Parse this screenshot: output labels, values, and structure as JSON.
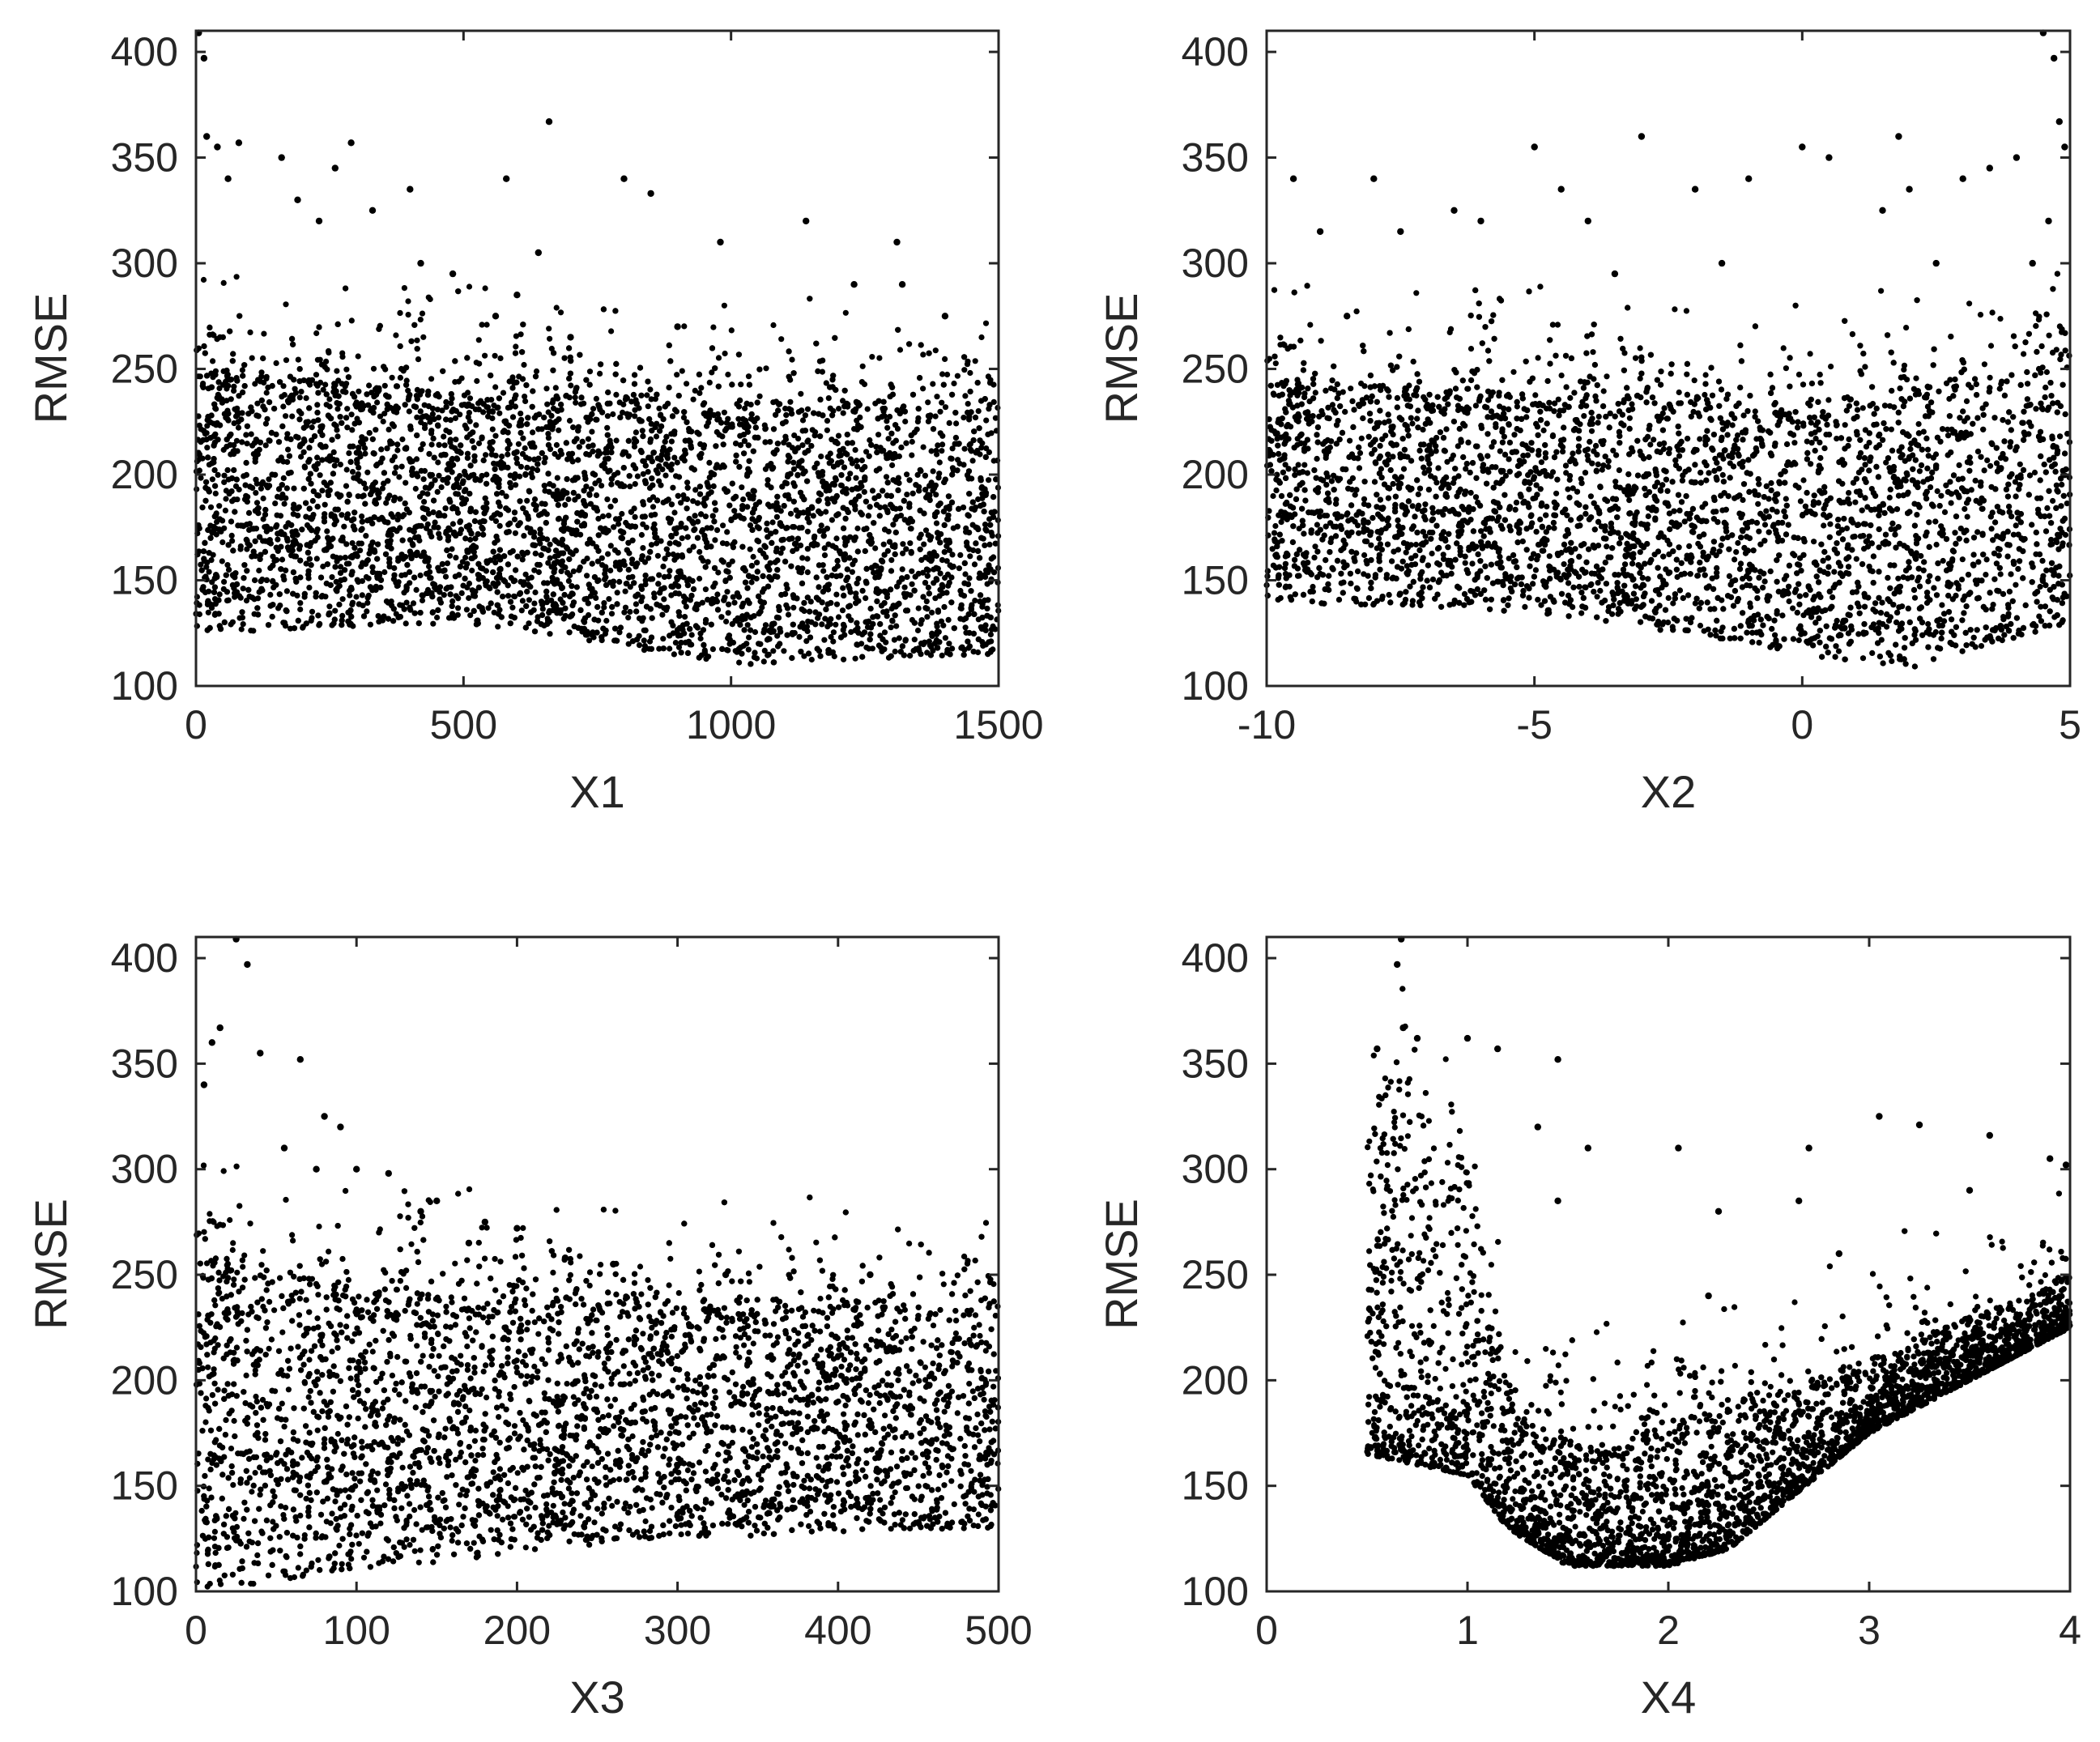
{
  "chart_data": [
    {
      "type": "scatter",
      "title": "",
      "xlabel": "X1",
      "ylabel": "RMSE",
      "xlim": [
        0,
        1500
      ],
      "ylim": [
        100,
        410
      ],
      "xticks": [
        0,
        500,
        1000,
        1500
      ],
      "yticks": [
        100,
        150,
        200,
        250,
        300,
        350,
        400
      ],
      "xtick_labels": [
        "0",
        "500",
        "1000",
        "1500"
      ],
      "ytick_labels": [
        "100",
        "150",
        "200",
        "250",
        "300",
        "350",
        "400"
      ],
      "grid": false,
      "points_approx": 6000,
      "band": {
        "x": [
          0,
          500,
          1000,
          1500
        ],
        "lower": [
          125,
          130,
          110,
          115
        ],
        "upper": [
          250,
          240,
          235,
          235
        ]
      },
      "outliers": [
        [
          5,
          410
        ],
        [
          15,
          397
        ],
        [
          20,
          360
        ],
        [
          40,
          355
        ],
        [
          60,
          340
        ],
        [
          80,
          357
        ],
        [
          160,
          350
        ],
        [
          190,
          330
        ],
        [
          230,
          320
        ],
        [
          260,
          345
        ],
        [
          290,
          357
        ],
        [
          330,
          325
        ],
        [
          400,
          335
        ],
        [
          420,
          300
        ],
        [
          480,
          295
        ],
        [
          560,
          275
        ],
        [
          580,
          340
        ],
        [
          600,
          285
        ],
        [
          640,
          305
        ],
        [
          660,
          367
        ],
        [
          800,
          340
        ],
        [
          850,
          333
        ],
        [
          980,
          310
        ],
        [
          1140,
          320
        ],
        [
          1310,
          310
        ],
        [
          1320,
          290
        ],
        [
          1400,
          275
        ],
        [
          1230,
          290
        ],
        [
          700,
          265
        ],
        [
          900,
          270
        ]
      ]
    },
    {
      "type": "scatter",
      "title": "",
      "xlabel": "X2",
      "ylabel": "RMSE",
      "xlim": [
        -10,
        5
      ],
      "ylim": [
        100,
        410
      ],
      "xticks": [
        -10,
        -5,
        0,
        5
      ],
      "yticks": [
        100,
        150,
        200,
        250,
        300,
        350,
        400
      ],
      "xtick_labels": [
        "-10",
        "-5",
        "0",
        "5"
      ],
      "ytick_labels": [
        "100",
        "150",
        "200",
        "250",
        "300",
        "350",
        "400"
      ],
      "grid": false,
      "points_approx": 6000,
      "band": {
        "x": [
          -10,
          -5,
          0,
          2,
          5
        ],
        "lower": [
          140,
          135,
          115,
          108,
          130
        ],
        "upper": [
          245,
          240,
          235,
          240,
          260
        ]
      },
      "outliers": [
        [
          -9.5,
          340
        ],
        [
          -9,
          315
        ],
        [
          -8,
          340
        ],
        [
          -7.5,
          315
        ],
        [
          -6.5,
          325
        ],
        [
          -6,
          320
        ],
        [
          -5,
          355
        ],
        [
          -4.5,
          335
        ],
        [
          -4,
          320
        ],
        [
          -3,
          360
        ],
        [
          -2,
          335
        ],
        [
          -1.5,
          300
        ],
        [
          -1,
          340
        ],
        [
          0,
          355
        ],
        [
          0.5,
          350
        ],
        [
          1.5,
          325
        ],
        [
          1.8,
          360
        ],
        [
          2,
          335
        ],
        [
          3,
          340
        ],
        [
          3.5,
          345
        ],
        [
          4,
          350
        ],
        [
          4.5,
          410
        ],
        [
          4.7,
          397
        ],
        [
          4.8,
          367
        ],
        [
          4.9,
          355
        ],
        [
          4.6,
          320
        ],
        [
          4.3,
          300
        ],
        [
          2.5,
          300
        ],
        [
          -8.5,
          275
        ],
        [
          -3.5,
          295
        ]
      ]
    },
    {
      "type": "scatter",
      "title": "",
      "xlabel": "X3",
      "ylabel": "RMSE",
      "xlim": [
        0,
        500
      ],
      "ylim": [
        100,
        410
      ],
      "xticks": [
        0,
        100,
        200,
        300,
        400,
        500
      ],
      "yticks": [
        100,
        150,
        200,
        250,
        300,
        350,
        400
      ],
      "xtick_labels": [
        "0",
        "100",
        "200",
        "300",
        "400",
        "500"
      ],
      "ytick_labels": [
        "100",
        "150",
        "200",
        "250",
        "300",
        "350",
        "400"
      ],
      "grid": false,
      "points_approx": 6000,
      "band": {
        "x": [
          0,
          100,
          200,
          300,
          400,
          500
        ],
        "lower": [
          100,
          110,
          118,
          125,
          128,
          130
        ],
        "upper": [
          260,
          245,
          240,
          240,
          238,
          238
        ]
      },
      "outliers": [
        [
          25,
          410
        ],
        [
          32,
          397
        ],
        [
          15,
          367
        ],
        [
          10,
          360
        ],
        [
          40,
          355
        ],
        [
          65,
          352
        ],
        [
          80,
          325
        ],
        [
          90,
          320
        ],
        [
          100,
          300
        ],
        [
          120,
          298
        ],
        [
          150,
          285
        ],
        [
          180,
          275
        ],
        [
          200,
          272
        ],
        [
          230,
          258
        ],
        [
          260,
          255
        ],
        [
          330,
          250
        ],
        [
          420,
          250
        ],
        [
          5,
          340
        ],
        [
          55,
          310
        ],
        [
          75,
          300
        ],
        [
          140,
          280
        ],
        [
          170,
          265
        ]
      ]
    },
    {
      "type": "scatter",
      "title": "",
      "xlabel": "X4",
      "ylabel": "RMSE",
      "xlim": [
        0,
        4
      ],
      "ylim": [
        100,
        410
      ],
      "xticks": [
        0,
        1,
        2,
        3,
        4
      ],
      "yticks": [
        100,
        150,
        200,
        250,
        300,
        350,
        400
      ],
      "xtick_labels": [
        "0",
        "1",
        "2",
        "3",
        "4"
      ],
      "ytick_labels": [
        "100",
        "150",
        "200",
        "250",
        "300",
        "350",
        "400"
      ],
      "grid": false,
      "points_approx": 6000,
      "lower_curve": {
        "x": [
          0.5,
          1.0,
          1.2,
          1.5,
          2.0,
          2.3,
          3.0,
          4.0
        ],
        "y": [
          165,
          155,
          130,
          112,
          112,
          120,
          175,
          225
        ]
      },
      "upper_curve": {
        "x": [
          0.5,
          0.7,
          1.0,
          1.1,
          1.3,
          1.6,
          2.0,
          3.0,
          4.0
        ],
        "y": [
          300,
          340,
          300,
          230,
          180,
          170,
          180,
          210,
          250
        ]
      },
      "outliers": [
        [
          0.67,
          410
        ],
        [
          0.65,
          397
        ],
        [
          0.68,
          367
        ],
        [
          0.75,
          362
        ],
        [
          1.0,
          362
        ],
        [
          1.15,
          357
        ],
        [
          0.55,
          357
        ],
        [
          1.45,
          352
        ],
        [
          1.35,
          320
        ],
        [
          1.6,
          310
        ],
        [
          2.05,
          310
        ],
        [
          2.25,
          280
        ],
        [
          2.65,
          285
        ],
        [
          2.7,
          310
        ],
        [
          3.05,
          325
        ],
        [
          3.25,
          321
        ],
        [
          3.6,
          316
        ],
        [
          3.9,
          305
        ],
        [
          3.98,
          302
        ],
        [
          1.45,
          285
        ],
        [
          2.2,
          240
        ],
        [
          2.85,
          260
        ],
        [
          3.5,
          290
        ]
      ]
    }
  ]
}
